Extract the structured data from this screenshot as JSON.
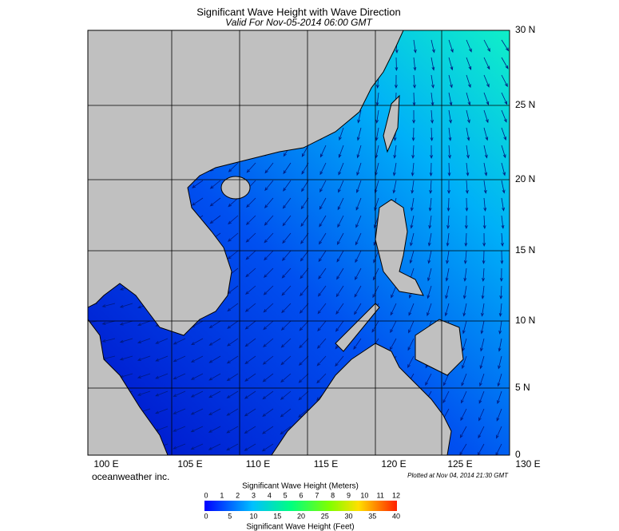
{
  "header": {
    "title": "Significant Wave Height with Wave Direction",
    "subtitle": "Valid For Nov-05-2014 06:00 GMT"
  },
  "map": {
    "lat_labels": [
      "30 N",
      "25 N",
      "20 N",
      "15 N",
      "10 N",
      "5 N",
      "0"
    ],
    "lon_labels": [
      "100 E",
      "105 E",
      "110 E",
      "115 E",
      "120 E",
      "125 E",
      "130 E"
    ],
    "credit": "oceanweather inc.",
    "plotted": "Plotted at Nov 04, 2014 21:30 GMT"
  },
  "legend": {
    "meters_title": "Significant Wave Height (Meters)",
    "meters_ticks": [
      0,
      1,
      2,
      3,
      4,
      5,
      6,
      7,
      8,
      9,
      10,
      11,
      12
    ],
    "feet_ticks": [
      0,
      5,
      10,
      15,
      20,
      25,
      30,
      35,
      40
    ],
    "feet_title": "Significant Wave Height (Feet)"
  }
}
